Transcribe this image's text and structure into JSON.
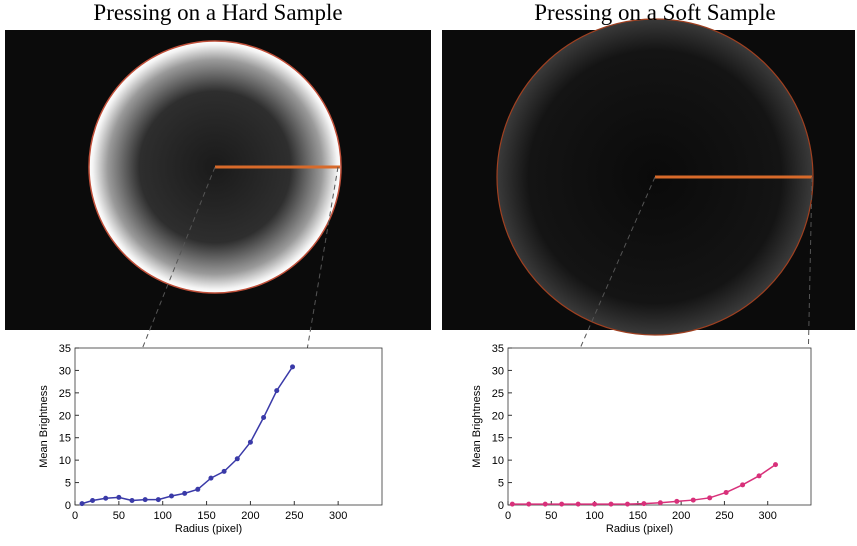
{
  "chart_data": [
    {
      "type": "line",
      "title": "Pressing on a Hard Sample",
      "xlabel": "Radius (pixel)",
      "ylabel": "Mean Brightness",
      "x": [
        8,
        20,
        35,
        50,
        65,
        80,
        95,
        110,
        125,
        140,
        155,
        170,
        185,
        200,
        215,
        230,
        248
      ],
      "values": [
        0.3,
        1,
        1.5,
        1.7,
        1,
        1.2,
        1.2,
        2,
        2.6,
        3.5,
        6,
        7.5,
        10.3,
        14,
        19.5,
        25.5,
        30.8
      ],
      "color": "#3a3aa8",
      "xlim": [
        0,
        350
      ],
      "ylim": [
        0,
        35
      ],
      "xticks": [
        0,
        50,
        100,
        150,
        200,
        250,
        300
      ],
      "yticks": [
        0,
        5,
        10,
        15,
        20,
        25,
        30,
        35
      ]
    },
    {
      "type": "line",
      "title": "Pressing on a Soft Sample",
      "xlabel": "Radius (pixel)",
      "ylabel": "Mean Brightness",
      "x": [
        5,
        24,
        43,
        62,
        81,
        100,
        119,
        138,
        157,
        176,
        195,
        214,
        233,
        252,
        271,
        290,
        309
      ],
      "values": [
        0.2,
        0.2,
        0.2,
        0.2,
        0.2,
        0.2,
        0.2,
        0.2,
        0.3,
        0.5,
        0.8,
        1.1,
        1.6,
        2.8,
        4.5,
        6.5,
        9
      ],
      "color": "#d8307a",
      "xlim": [
        0,
        350
      ],
      "ylim": [
        0,
        35
      ],
      "xticks": [
        0,
        50,
        100,
        150,
        200,
        250,
        300
      ],
      "yticks": [
        0,
        5,
        10,
        15,
        20,
        25,
        30,
        35
      ]
    }
  ]
}
